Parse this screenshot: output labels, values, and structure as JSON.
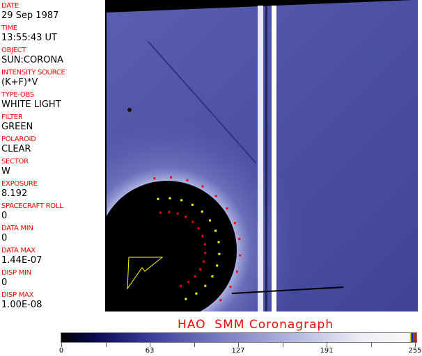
{
  "fields": [
    {
      "label": "DATE",
      "value": "29 Sep 1987"
    },
    {
      "label": "TIME",
      "value": "13:55:43 UT"
    },
    {
      "label": "OBJECT",
      "value": "SUN:CORONA"
    },
    {
      "label": "INTENSITY SOURCE",
      "value": "(K+F)*V"
    },
    {
      "label": "TYPE-OBS",
      "value": "WHITE LIGHT"
    },
    {
      "label": "FILTER",
      "value": "GREEN"
    },
    {
      "label": "POLAROID",
      "value": "CLEAR"
    },
    {
      "label": "SECTOR",
      "value": "W"
    },
    {
      "label": "EXPOSURE",
      "value": "8.192"
    },
    {
      "label": "SPACECRAFT ROLL",
      "value": "0"
    },
    {
      "label": "DATA MIN",
      "value": "0"
    },
    {
      "label": "DATA MAX",
      "value": "1.44E-07"
    },
    {
      "label": "DISP MIN",
      "value": "0"
    },
    {
      "label": "DISP MAX",
      "value": "1.00E-08"
    }
  ],
  "title": "HAO  SMM Coronagraph",
  "colorbar": {
    "ticks": [
      "0",
      "63",
      "127",
      "191",
      "255"
    ],
    "min": 0,
    "max": 255
  },
  "colors": {
    "label": "#ff0000",
    "background": "#4a4fa0",
    "occulter": "#000000"
  }
}
